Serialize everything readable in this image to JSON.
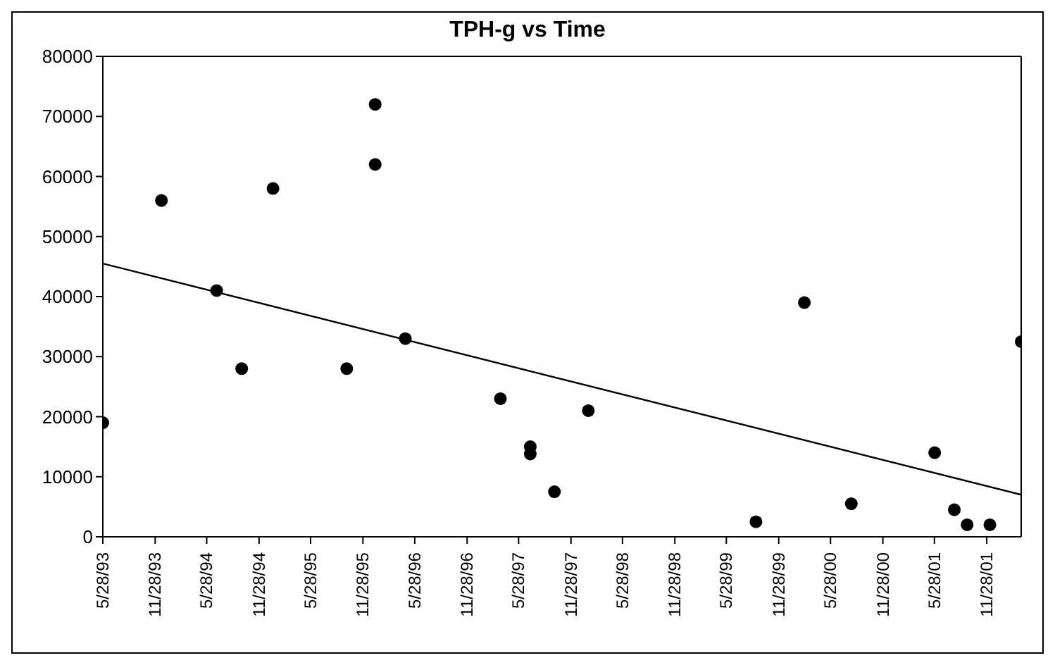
{
  "chart_data": {
    "type": "scatter",
    "title": "TPH-g vs Time",
    "grid": false,
    "x": [
      "1993-05-28",
      "1993-12-20",
      "1994-07-02",
      "1994-09-28",
      "1995-01-16",
      "1995-10-02",
      "1996-01-10",
      "1996-01-10",
      "1996-04-25",
      "1997-03-25",
      "1997-07-08",
      "1997-07-08",
      "1997-10-01",
      "1998-01-28",
      "1999-09-09",
      "2000-02-26",
      "2000-08-09",
      "2001-05-29",
      "2001-08-06",
      "2001-09-20",
      "2001-12-09",
      "2002-03-29"
    ],
    "series": [
      {
        "marker": "circle",
        "color": "#000000",
        "values": [
          19000,
          56000,
          41000,
          28000,
          58000,
          28000,
          72000,
          62000,
          33000,
          23000,
          15000,
          13800,
          7500,
          21000,
          2500,
          39000,
          5500,
          14000,
          4500,
          2000,
          2000,
          32500
        ]
      },
      {
        "type": "line",
        "marker": "none",
        "color": "#000000",
        "x": [
          "1993-05-28",
          "2002-03-29"
        ],
        "values": [
          45500,
          7000
        ]
      }
    ],
    "xlim": [
      "1993-05-28",
      "2002-03-29"
    ],
    "xticks": [
      {
        "value": "1993-05-28",
        "label": "5/28/93"
      },
      {
        "value": "1993-11-28",
        "label": "11/28/93"
      },
      {
        "value": "1994-05-28",
        "label": "5/28/94"
      },
      {
        "value": "1994-11-28",
        "label": "11/28/94"
      },
      {
        "value": "1995-05-28",
        "label": "5/28/95"
      },
      {
        "value": "1995-11-28",
        "label": "11/28/95"
      },
      {
        "value": "1996-05-28",
        "label": "5/28/96"
      },
      {
        "value": "1996-11-28",
        "label": "11/28/96"
      },
      {
        "value": "1997-05-28",
        "label": "5/28/97"
      },
      {
        "value": "1997-11-28",
        "label": "11/28/97"
      },
      {
        "value": "1998-05-28",
        "label": "5/28/98"
      },
      {
        "value": "1998-11-28",
        "label": "11/28/98"
      },
      {
        "value": "1999-05-28",
        "label": "5/28/99"
      },
      {
        "value": "1999-11-28",
        "label": "11/28/99"
      },
      {
        "value": "2000-05-28",
        "label": "5/28/00"
      },
      {
        "value": "2000-11-28",
        "label": "11/28/00"
      },
      {
        "value": "2001-05-28",
        "label": "5/28/01"
      },
      {
        "value": "2001-11-28",
        "label": "11/28/01"
      }
    ],
    "ylim": [
      0,
      80000
    ],
    "yticks": [
      0,
      10000,
      20000,
      30000,
      40000,
      50000,
      60000,
      70000,
      80000
    ]
  }
}
